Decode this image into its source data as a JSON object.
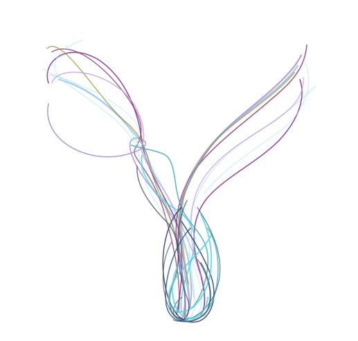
{
  "artwork": {
    "background_color": "#ffffff",
    "strand_colors": [
      "#7b2d8e",
      "#9b7fc4",
      "#4fd1d9",
      "#a8e6f0",
      "#2d3a5e",
      "#8a3d6a",
      "#7da7e0",
      "#8c8c2e",
      "#3fa6b8",
      "#5a5a6e",
      "#c9a0dc",
      "#1f5f8b"
    ]
  }
}
